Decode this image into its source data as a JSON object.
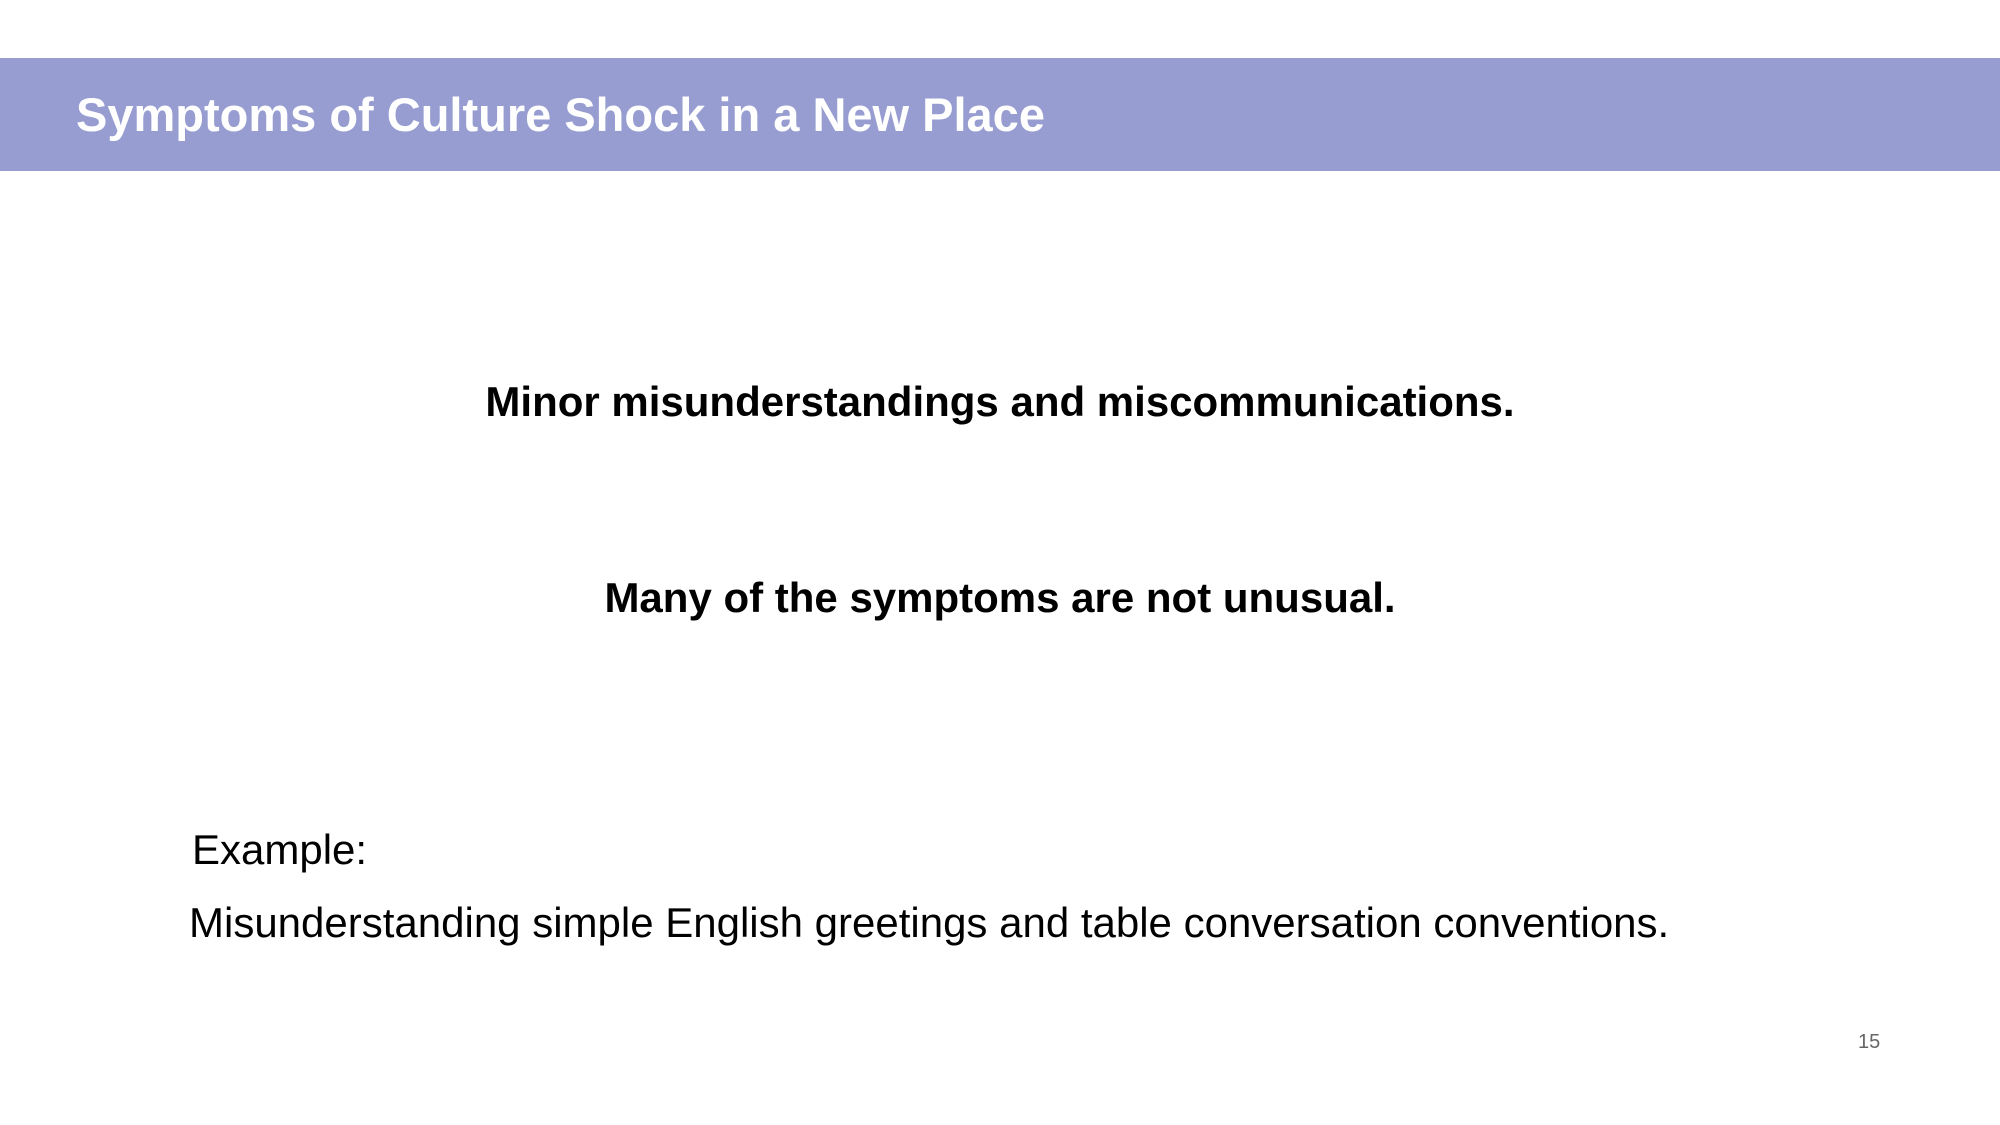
{
  "header": {
    "title": "Symptoms of Culture Shock in a New Place",
    "band_color": "#979dd1"
  },
  "body": {
    "statements": [
      "Minor misunderstandings and miscommunications.",
      "Many of the symptoms are not unusual."
    ],
    "example": {
      "label": "Example:",
      "text": "Misunderstanding simple English greetings and table conversation conventions."
    }
  },
  "footer": {
    "page_number": "15"
  }
}
